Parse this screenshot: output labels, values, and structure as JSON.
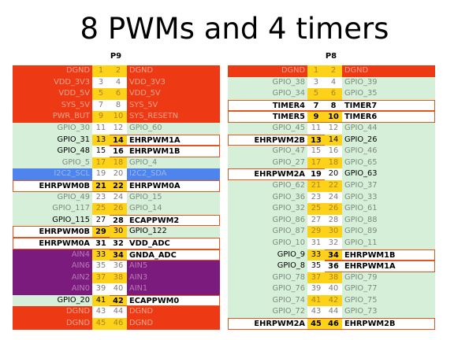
{
  "title": "8 PWMs and 4 timers",
  "headers": {
    "p9": "P9",
    "p8": "P8"
  },
  "p9": [
    [
      "DGND",
      "1",
      "2",
      "DGND",
      "r",
      "y",
      ""
    ],
    [
      "VDD_3V3",
      "3",
      "4",
      "VDD_3V3",
      "r",
      "w",
      ""
    ],
    [
      "VDD_5V",
      "5",
      "6",
      "VDD_5V",
      "r",
      "y",
      ""
    ],
    [
      "SYS_5V",
      "7",
      "8",
      "SYS_5V",
      "r",
      "w",
      ""
    ],
    [
      "PWR_BUT",
      "9",
      "10",
      "SYS_RESETN",
      "r",
      "y",
      ""
    ],
    [
      "GPIO_30",
      "11",
      "12",
      "GPIO_60",
      "g",
      "w",
      ""
    ],
    [
      "GPIO_31",
      "13",
      "14",
      "EHRPWM1A",
      "g",
      "y",
      "r"
    ],
    [
      "GPIO_48",
      "15",
      "16",
      "EHRPWM1B",
      "g",
      "w",
      "r"
    ],
    [
      "GPIO_5",
      "17",
      "18",
      "GPIO_4",
      "g",
      "y",
      ""
    ],
    [
      "I2C2_SCL",
      "19",
      "20",
      "I2C2_SDA",
      "b",
      "w",
      ""
    ],
    [
      "EHRPWM0B",
      "21",
      "22",
      "EHRPWM0A",
      "g",
      "y",
      "b"
    ],
    [
      "GPIO_49",
      "23",
      "24",
      "GPIO_15",
      "g",
      "w",
      ""
    ],
    [
      "GPIO_117",
      "25",
      "26",
      "GPIO_14",
      "g",
      "y",
      ""
    ],
    [
      "GPIO_115",
      "27",
      "28",
      "ECAPPWM2",
      "g",
      "w",
      "r"
    ],
    [
      "EHRPWM0B",
      "29",
      "30",
      "GPIO_122",
      "g",
      "y",
      "l"
    ],
    [
      "EHRPWM0A",
      "31",
      "32",
      "VDD_ADC",
      "g",
      "w",
      "lr"
    ],
    [
      "AIN4",
      "33",
      "34",
      "GNDA_ADC",
      "p",
      "y",
      "pr"
    ],
    [
      "AIN6",
      "35",
      "36",
      "AIN5",
      "p",
      "w",
      ""
    ],
    [
      "AIN2",
      "37",
      "38",
      "AIN3",
      "p",
      "y",
      ""
    ],
    [
      "AIN0",
      "39",
      "40",
      "AIN1",
      "p",
      "w",
      ""
    ],
    [
      "GPIO_20",
      "41",
      "42",
      "ECAPPWM0",
      "g",
      "y",
      "r"
    ],
    [
      "DGND",
      "43",
      "44",
      "DGND",
      "r",
      "w",
      ""
    ],
    [
      "DGND",
      "45",
      "46",
      "DGND",
      "r",
      "y",
      ""
    ]
  ],
  "p8": [
    [
      "DGND",
      "1",
      "2",
      "DGND",
      "r",
      "y",
      ""
    ],
    [
      "GPIO_38",
      "3",
      "4",
      "GPIO_39",
      "g",
      "w",
      ""
    ],
    [
      "GPIO_34",
      "5",
      "6",
      "GPIO_35",
      "g",
      "y",
      ""
    ],
    [
      "TIMER4",
      "7",
      "8",
      "TIMER7",
      "g",
      "w",
      "b"
    ],
    [
      "TIMER5",
      "9",
      "10",
      "TIMER6",
      "g",
      "y",
      "b"
    ],
    [
      "GPIO_45",
      "11",
      "12",
      "GPIO_44",
      "g",
      "w",
      ""
    ],
    [
      "EHRPWM2B",
      "13",
      "14",
      "GPIO_26",
      "g",
      "y",
      "l"
    ],
    [
      "GPIO_47",
      "15",
      "16",
      "GPIO_46",
      "g",
      "w",
      ""
    ],
    [
      "GPIO_27",
      "17",
      "18",
      "GPIO_65",
      "g",
      "y",
      ""
    ],
    [
      "EHRPWM2A",
      "19",
      "20",
      "GPIO_63",
      "g",
      "w",
      "l"
    ],
    [
      "GPIO_62",
      "21",
      "22",
      "GPIO_37",
      "g",
      "y",
      ""
    ],
    [
      "GPIO_36",
      "23",
      "24",
      "GPIO_33",
      "g",
      "w",
      ""
    ],
    [
      "GPIO_32",
      "25",
      "26",
      "GPIO_61",
      "g",
      "y",
      ""
    ],
    [
      "GPIO_86",
      "27",
      "28",
      "GPIO_88",
      "g",
      "w",
      ""
    ],
    [
      "GPIO_87",
      "29",
      "30",
      "GPIO_89",
      "g",
      "y",
      ""
    ],
    [
      "GPIO_10",
      "31",
      "32",
      "GPIO_11",
      "g",
      "w",
      ""
    ],
    [
      "GPIO_9",
      "33",
      "34",
      "EHRPWM1B",
      "g",
      "y",
      "r"
    ],
    [
      "GPIO_8",
      "35",
      "36",
      "EHRPWM1A",
      "g",
      "w",
      "r"
    ],
    [
      "GPIO_78",
      "37",
      "38",
      "GPIO_79",
      "g",
      "y",
      ""
    ],
    [
      "GPIO_76",
      "39",
      "40",
      "GPIO_77",
      "g",
      "w",
      ""
    ],
    [
      "GPIO_74",
      "41",
      "42",
      "GPIO_75",
      "g",
      "y",
      ""
    ],
    [
      "GPIO_72",
      "43",
      "44",
      "GPIO_73",
      "g",
      "w",
      ""
    ],
    [
      "EHRPWM2A",
      "45",
      "46",
      "EHRPWM2B",
      "r",
      "y",
      "b"
    ]
  ],
  "colors": {
    "red": "#ee3a14",
    "green": "#d6efd9",
    "purple": "#7c1b7e",
    "blue": "#4d84ee",
    "yellow": "#ffd21a",
    "highlight_border": "#e2571f"
  }
}
